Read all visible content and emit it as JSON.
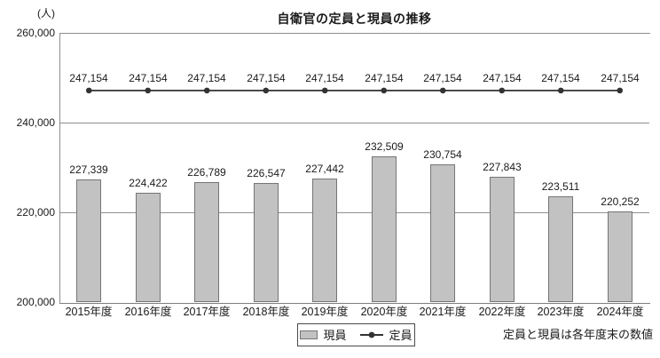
{
  "chart_data": {
    "type": "bar",
    "title": "自衛官の定員と現員の推移",
    "unit_label": "(人)",
    "categories": [
      "2015年度",
      "2016年度",
      "2017年度",
      "2018年度",
      "2019年度",
      "2020年度",
      "2021年度",
      "2022年度",
      "2023年度",
      "2024年度"
    ],
    "series": [
      {
        "name": "現員",
        "type": "bar",
        "values": [
          227339,
          224422,
          226789,
          226547,
          227442,
          232509,
          230754,
          227843,
          223511,
          220252
        ]
      },
      {
        "name": "定員",
        "type": "line",
        "values": [
          247154,
          247154,
          247154,
          247154,
          247154,
          247154,
          247154,
          247154,
          247154,
          247154
        ]
      }
    ],
    "ylim": [
      200000,
      260000
    ],
    "yticks": [
      200000,
      220000,
      240000,
      260000
    ],
    "grid": "horizontal",
    "legend_position": "bottom-center",
    "legend": [
      "現員",
      "定員"
    ],
    "note": "定員と現員は各年度末の数値",
    "colors": {
      "bar_fill": "#c2c2c2",
      "bar_border": "#757575",
      "line": "#333333",
      "grid": "#8f8f8f",
      "axis": "#7d7d7d",
      "text": "#1a1a1a",
      "background": "#ffffff",
      "legend_border": "#4a4a4a"
    }
  }
}
